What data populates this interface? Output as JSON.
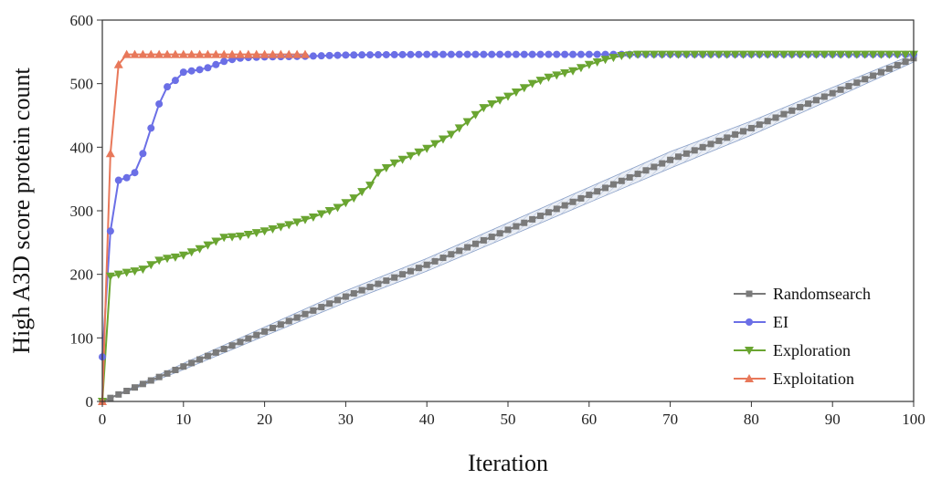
{
  "chart_data": {
    "type": "line",
    "title": "",
    "xlabel": "Iteration",
    "ylabel": "High A3D score protein count",
    "xlim": [
      0,
      100
    ],
    "ylim": [
      0,
      600
    ],
    "x_ticks": [
      0,
      10,
      20,
      30,
      40,
      50,
      60,
      70,
      80,
      90,
      100
    ],
    "y_ticks": [
      0,
      100,
      200,
      300,
      400,
      500,
      600
    ],
    "grid": false,
    "legend_position": "bottom-right",
    "series": [
      {
        "name": "Randomsearch",
        "color": "#7a7a7a",
        "marker": "square",
        "band_color": "#8aa0c8",
        "x": [
          0,
          10,
          20,
          30,
          40,
          50,
          60,
          70,
          80,
          90,
          100
        ],
        "y": [
          0,
          55,
          110,
          165,
          215,
          270,
          325,
          380,
          430,
          485,
          540
        ],
        "band": [
          0,
          5,
          7,
          9,
          10,
          11,
          12,
          13,
          11,
          9,
          6
        ]
      },
      {
        "name": "EI",
        "color": "#6b6fe6",
        "marker": "circle",
        "x": [
          0,
          1,
          2,
          3,
          4,
          5,
          6,
          7,
          8,
          9,
          10,
          11,
          12,
          13,
          14,
          15,
          16,
          17,
          18,
          20,
          25,
          30,
          40,
          50,
          60,
          65,
          70,
          80,
          90,
          100
        ],
        "y": [
          70,
          268,
          348,
          352,
          360,
          390,
          430,
          468,
          495,
          505,
          518,
          520,
          522,
          525,
          530,
          535,
          538,
          540,
          541,
          542,
          543,
          545,
          546,
          546,
          546,
          546,
          546,
          546,
          546,
          546
        ]
      },
      {
        "name": "Exploration",
        "color": "#6aa531",
        "marker": "triangle-down",
        "x": [
          0,
          1,
          2,
          3,
          4,
          5,
          6,
          7,
          8,
          9,
          10,
          12,
          14,
          15,
          17,
          20,
          23,
          26,
          29,
          31,
          33,
          34,
          36,
          40,
          43,
          45,
          47,
          50,
          53,
          55,
          58,
          60,
          62,
          64,
          66,
          70,
          80,
          90,
          100
        ],
        "y": [
          0,
          197,
          200,
          203,
          205,
          208,
          215,
          222,
          225,
          227,
          230,
          240,
          252,
          258,
          260,
          268,
          278,
          290,
          305,
          320,
          340,
          360,
          375,
          398,
          420,
          440,
          462,
          480,
          500,
          510,
          520,
          530,
          538,
          544,
          546,
          546,
          546,
          546,
          546
        ]
      },
      {
        "name": "Exploitation",
        "color": "#e8785a",
        "marker": "triangle-up",
        "x": [
          0,
          1,
          2,
          3,
          4,
          6,
          8,
          10,
          15,
          20,
          25
        ],
        "y": [
          0,
          390,
          530,
          546,
          546,
          546,
          546,
          546,
          546,
          546,
          546
        ]
      }
    ]
  }
}
